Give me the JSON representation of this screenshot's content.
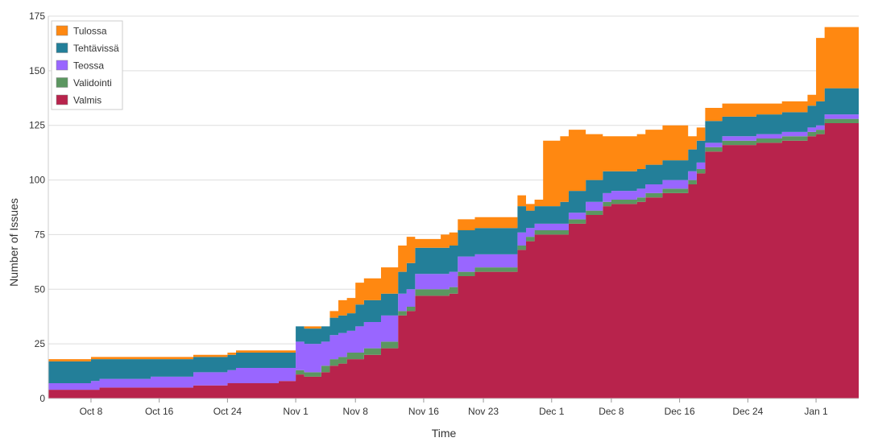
{
  "chart_data": {
    "type": "area",
    "stacked": true,
    "step": true,
    "xlabel": "Time",
    "ylabel": "Number of Issues",
    "ylim": [
      0,
      175
    ],
    "y_ticks": [
      0,
      25,
      50,
      75,
      100,
      125,
      150,
      175
    ],
    "xlim": [
      "2015-10-03",
      "2016-01-06"
    ],
    "x_ticks": [
      {
        "date": "2015-10-08",
        "label": "Oct 8"
      },
      {
        "date": "2015-10-16",
        "label": "Oct 16"
      },
      {
        "date": "2015-10-24",
        "label": "Oct 24"
      },
      {
        "date": "2015-11-01",
        "label": "Nov 1"
      },
      {
        "date": "2015-11-08",
        "label": "Nov 8"
      },
      {
        "date": "2015-11-16",
        "label": "Nov 16"
      },
      {
        "date": "2015-11-23",
        "label": "Nov 23"
      },
      {
        "date": "2015-12-01",
        "label": "Dec 1"
      },
      {
        "date": "2015-12-08",
        "label": "Dec 8"
      },
      {
        "date": "2015-12-16",
        "label": "Dec 16"
      },
      {
        "date": "2015-12-24",
        "label": "Dec 24"
      },
      {
        "date": "2016-01-01",
        "label": "Jan 1"
      }
    ],
    "grid": true,
    "legend_position": "top-left",
    "x": [
      "2015-10-03",
      "2015-10-05",
      "2015-10-08",
      "2015-10-09",
      "2015-10-15",
      "2015-10-20",
      "2015-10-24",
      "2015-10-25",
      "2015-10-30",
      "2015-10-31",
      "2015-11-01",
      "2015-11-02",
      "2015-11-04",
      "2015-11-05",
      "2015-11-06",
      "2015-11-07",
      "2015-11-08",
      "2015-11-09",
      "2015-11-11",
      "2015-11-13",
      "2015-11-14",
      "2015-11-15",
      "2015-11-16",
      "2015-11-18",
      "2015-11-19",
      "2015-11-20",
      "2015-11-22",
      "2015-11-24",
      "2015-11-26",
      "2015-11-27",
      "2015-11-28",
      "2015-11-29",
      "2015-11-30",
      "2015-12-02",
      "2015-12-03",
      "2015-12-05",
      "2015-12-07",
      "2015-12-08",
      "2015-12-11",
      "2015-12-12",
      "2015-12-14",
      "2015-12-17",
      "2015-12-18",
      "2015-12-19",
      "2015-12-21",
      "2015-12-25",
      "2015-12-28",
      "2015-12-31",
      "2016-01-01",
      "2016-01-02",
      "2016-01-06"
    ],
    "series": [
      {
        "name": "Valmis",
        "color": "#b8234c",
        "values": [
          4,
          4,
          4,
          5,
          5,
          6,
          7,
          7,
          8,
          8,
          11,
          10,
          12,
          15,
          16,
          18,
          18,
          20,
          23,
          38,
          40,
          47,
          47,
          47,
          48,
          56,
          58,
          58,
          58,
          68,
          72,
          75,
          75,
          75,
          80,
          84,
          88,
          89,
          90,
          92,
          94,
          98,
          103,
          113,
          116,
          117,
          118,
          120,
          121,
          126,
          134
        ]
      },
      {
        "name": "Validointi",
        "color": "#5b9660",
        "values": [
          0,
          0,
          0,
          0,
          0,
          0,
          0,
          0,
          0,
          0,
          2,
          2,
          3,
          3,
          3,
          3,
          3,
          3,
          3,
          2,
          2,
          3,
          3,
          3,
          3,
          2,
          2,
          2,
          2,
          2,
          2,
          2,
          2,
          2,
          2,
          2,
          2,
          2,
          2,
          2,
          2,
          2,
          2,
          2,
          2,
          2,
          2,
          2,
          2,
          2,
          2
        ]
      },
      {
        "name": "Teossa",
        "color": "#9966ff",
        "values": [
          3,
          3,
          4,
          4,
          5,
          6,
          6,
          7,
          6,
          6,
          13,
          13,
          11,
          11,
          11,
          10,
          12,
          12,
          12,
          8,
          8,
          7,
          7,
          7,
          7,
          7,
          6,
          6,
          6,
          6,
          4,
          3,
          3,
          3,
          3,
          4,
          4,
          4,
          4,
          4,
          4,
          4,
          3,
          2,
          2,
          2,
          2,
          2,
          2,
          2,
          2
        ]
      },
      {
        "name": "Tehtävissä",
        "color": "#237f99",
        "values": [
          10,
          10,
          10,
          9,
          8,
          7,
          7,
          7,
          7,
          7,
          7,
          7,
          7,
          8,
          8,
          8,
          10,
          10,
          10,
          10,
          12,
          12,
          12,
          12,
          12,
          12,
          12,
          12,
          12,
          12,
          8,
          8,
          8,
          10,
          10,
          10,
          10,
          9,
          9,
          9,
          9,
          10,
          10,
          10,
          9,
          9,
          9,
          10,
          11,
          12,
          11
        ]
      },
      {
        "name": "Tulossa",
        "color": "#ff8811",
        "values": [
          1,
          1,
          1,
          1,
          1,
          1,
          1,
          1,
          1,
          1,
          0,
          1,
          0,
          3,
          7,
          7,
          10,
          10,
          12,
          12,
          12,
          4,
          4,
          6,
          6,
          5,
          5,
          5,
          5,
          5,
          3,
          3,
          30,
          30,
          28,
          21,
          16,
          16,
          16,
          16,
          16,
          6,
          6,
          6,
          6,
          5,
          5,
          5,
          29,
          28,
          23
        ]
      }
    ]
  }
}
